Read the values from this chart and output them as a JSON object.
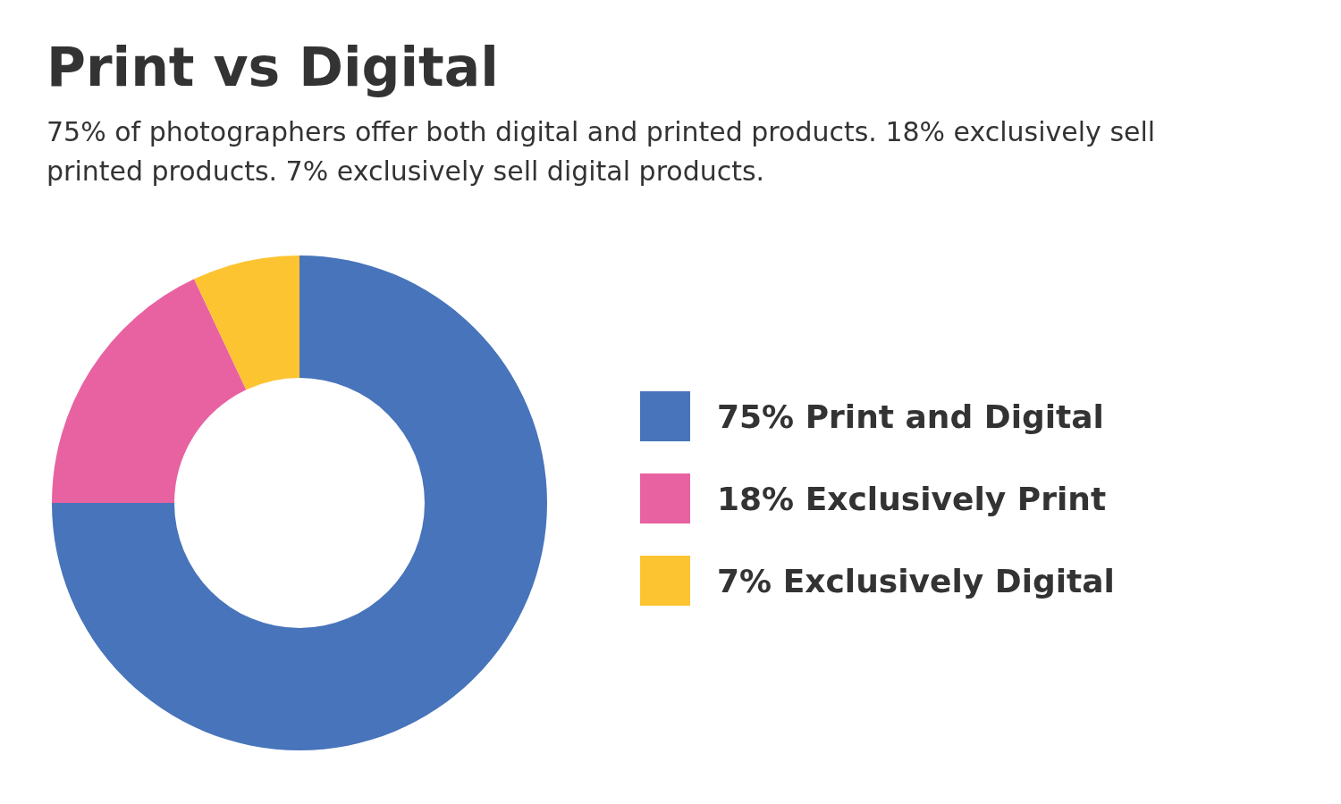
{
  "chart_data": {
    "type": "donut",
    "title": "Print vs Digital",
    "subtitle": "75% of photographers offer both digital and printed products. 18% exclusively sell printed products. 7% exclusively sell digital products.",
    "categories": [
      "75% Print and Digital",
      "18% Exclusively Print",
      "7% Exclusively Digital"
    ],
    "values": [
      75,
      18,
      7
    ],
    "colors": [
      "#4774ba",
      "#e862a2",
      "#fdc431"
    ],
    "legend": "right"
  }
}
